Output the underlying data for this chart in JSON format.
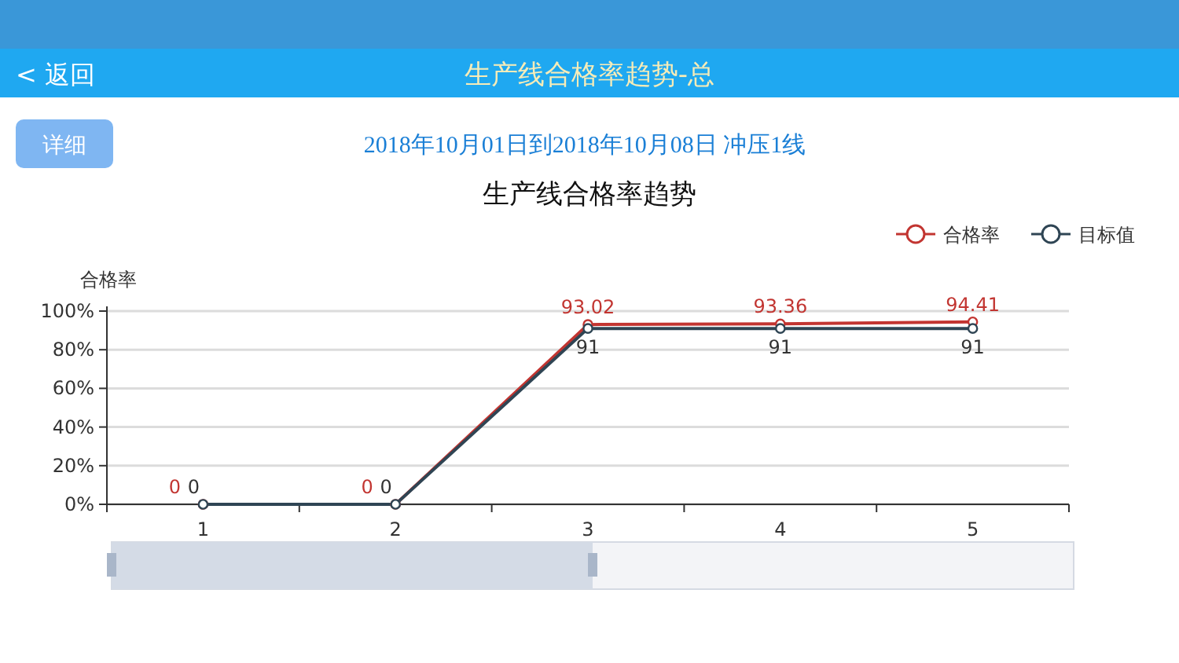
{
  "chart_data": {
    "type": "line",
    "title": "生产线合格率趋势",
    "subtitle": "2018年10月01日到2018年10月08日 冲压1线",
    "ylabel": "合格率",
    "annotations": [
      "生产线合格率趋势-总",
      "< 返回",
      "详细"
    ],
    "categories": [
      "1",
      "2",
      "3",
      "4",
      "5"
    ],
    "series": [
      {
        "name": "合格率",
        "color": "#c23531",
        "values": [
          0,
          0,
          93.02,
          93.36,
          94.41
        ]
      },
      {
        "name": "目标值",
        "color": "#2f4554",
        "values": [
          0,
          0,
          91,
          91,
          91
        ]
      }
    ],
    "ylim": [
      0,
      100
    ],
    "yticks": [
      {
        "value": 0,
        "label": "0%"
      },
      {
        "value": 20,
        "label": "20%"
      },
      {
        "value": 40,
        "label": "40%"
      },
      {
        "value": 60,
        "label": "60%"
      },
      {
        "value": 80,
        "label": "80%"
      },
      {
        "value": 100,
        "label": "100%"
      }
    ],
    "grid": "y",
    "legend": "top right",
    "marker": "circle",
    "line_style": "solid",
    "data_labels": true
  }
}
